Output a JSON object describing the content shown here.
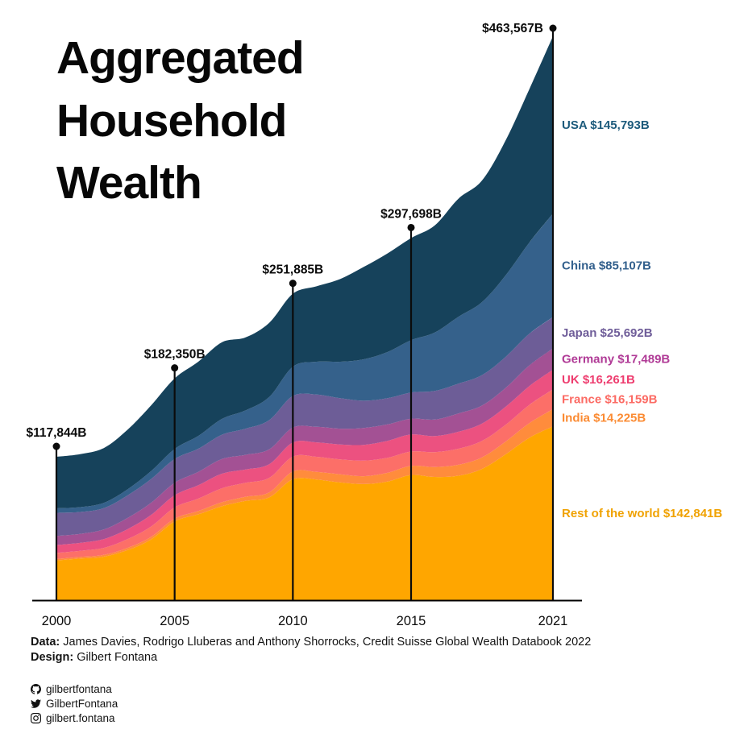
{
  "title": "Aggregated Household Wealth",
  "footer": {
    "data_label": "Data:",
    "data_text": "James Davies, Rodrigo Lluberas and Anthony Shorrocks, Credit Suisse Global Wealth Databook 2022",
    "design_label": "Design:",
    "design_text": "Gilbert Fontana"
  },
  "social": [
    {
      "icon": "github-icon",
      "handle": "gilbertfontana"
    },
    {
      "icon": "twitter-icon",
      "handle": "GilbertFontana"
    },
    {
      "icon": "instagram-icon",
      "handle": "gilbert.fontana"
    }
  ],
  "chart_data": {
    "type": "area",
    "stacked": true,
    "title": "Aggregated Household Wealth",
    "unit": "USD billions",
    "legend_position": "right",
    "grid": false,
    "ylim": [
      0,
      463567
    ],
    "x": [
      2000,
      2001,
      2002,
      2003,
      2004,
      2005,
      2006,
      2007,
      2008,
      2009,
      2010,
      2011,
      2012,
      2013,
      2014,
      2015,
      2016,
      2017,
      2018,
      2019,
      2020,
      2021
    ],
    "x_ticks": [
      2000,
      2005,
      2010,
      2015,
      2021
    ],
    "x_tick_labels": [
      "2000",
      "2005",
      "2010",
      "2015",
      "2021"
    ],
    "markers": [
      {
        "year": 2000,
        "label": "$117,844B",
        "total": 117844
      },
      {
        "year": 2005,
        "label": "$182,350B",
        "total": 182350
      },
      {
        "year": 2010,
        "label": "$251,885B",
        "total": 251885
      },
      {
        "year": 2015,
        "label": "$297,698B",
        "total": 297698
      },
      {
        "year": 2021,
        "label": "$463,567B",
        "total": 463567
      }
    ],
    "series": [
      {
        "name": "USA",
        "label": "USA $145,793B",
        "final": 145793,
        "color": "#16425b",
        "label_color": "#1d5b7c",
        "values": [
          42300,
          43500,
          45000,
          49000,
          54000,
          58000,
          61000,
          63000,
          60000,
          61000,
          60000,
          62000,
          68000,
          76000,
          81000,
          84000,
          88000,
          97000,
          100000,
          111000,
          126000,
          145793
        ]
      },
      {
        "name": "China",
        "label": "China $85,107B",
        "final": 85107,
        "color": "#35618b",
        "label_color": "#33608d",
        "values": [
          3700,
          4000,
          4400,
          5000,
          6500,
          8300,
          10500,
          13000,
          15000,
          19000,
          24000,
          27000,
          30000,
          34000,
          38000,
          43000,
          48000,
          55000,
          60000,
          67000,
          75000,
          85107
        ]
      },
      {
        "name": "Japan",
        "label": "Japan $25,692B",
        "final": 25692,
        "color": "#6d5d97",
        "label_color": "#6f5d99",
        "values": [
          19000,
          18000,
          17500,
          18500,
          19500,
          19500,
          19000,
          20000,
          21500,
          24000,
          26000,
          26500,
          25000,
          22500,
          21500,
          21500,
          23500,
          24500,
          25000,
          25500,
          26000,
          25692
        ]
      },
      {
        "name": "Germany",
        "label": "Germany $17,489B",
        "final": 17489,
        "color": "#a35194",
        "label_color": "#b03a96",
        "values": [
          7500,
          7400,
          7900,
          9200,
          10000,
          10300,
          11000,
          12000,
          12000,
          12200,
          12300,
          12800,
          13000,
          13800,
          13500,
          13000,
          13600,
          15000,
          14800,
          15500,
          17000,
          17489
        ]
      },
      {
        "name": "UK",
        "label": "UK $16,261B",
        "final": 16261,
        "color": "#ec5180",
        "label_color": "#ee3d6f",
        "values": [
          6500,
          6500,
          7200,
          8200,
          9500,
          10000,
          11000,
          12000,
          11000,
          11200,
          11500,
          11800,
          12300,
          13000,
          14000,
          14000,
          13200,
          14000,
          14300,
          14800,
          15500,
          16261
        ]
      },
      {
        "name": "France",
        "label": "France $16,159B",
        "final": 16159,
        "color": "#fc6f68",
        "label_color": "#fc6b64",
        "values": [
          5000,
          5100,
          5800,
          7200,
          8500,
          9200,
          10200,
          11500,
          11500,
          12000,
          12300,
          12500,
          12200,
          12800,
          12300,
          11800,
          12200,
          13200,
          13500,
          13800,
          15000,
          16159
        ]
      },
      {
        "name": "India",
        "label": "India $14,225B",
        "final": 14225,
        "color": "#ff8c3c",
        "label_color": "#fb8b33",
        "values": [
          1200,
          1300,
          1450,
          1800,
          2100,
          2300,
          2700,
          3300,
          3400,
          4100,
          6400,
          6200,
          6700,
          6500,
          7200,
          7500,
          8200,
          9000,
          9500,
          10500,
          12000,
          14225
        ]
      },
      {
        "name": "Rest of the world",
        "label": "Rest of the world $142,841B",
        "final": 142841,
        "color": "#ffa600",
        "label_color": "#f0a202",
        "values": [
          32644,
          34200,
          35750,
          41100,
          49900,
          64750,
          70600,
          77200,
          81600,
          84500,
          99385,
          99200,
          96800,
          95400,
          97500,
          102898,
          101300,
          102300,
          107900,
          119900,
          133500,
          142841
        ]
      }
    ]
  }
}
